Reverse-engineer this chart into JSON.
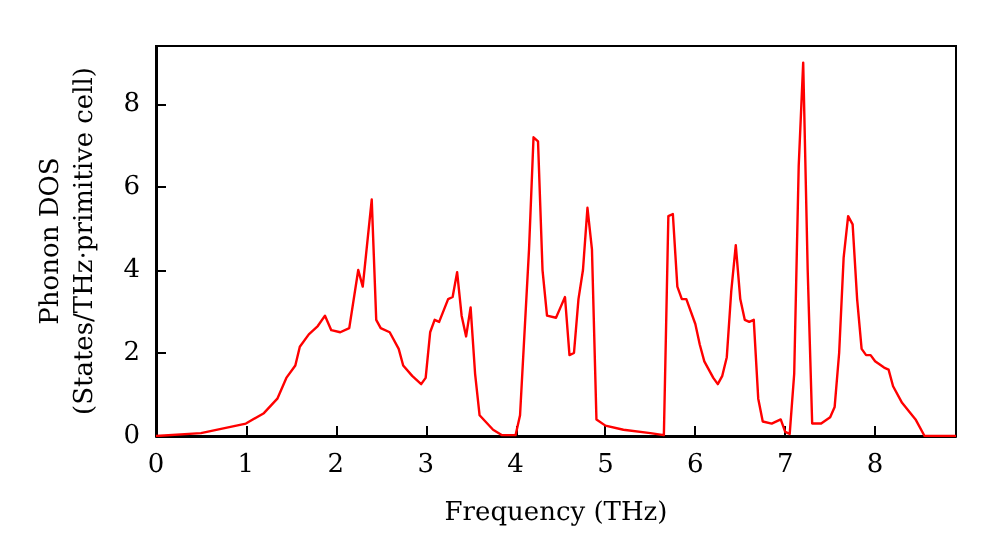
{
  "chart_data": {
    "type": "line",
    "xlabel": "Frequency (THz)",
    "ylabel": "Phonon DOS\n(States/THz·primitive cell)",
    "xlim": [
      0,
      8.9
    ],
    "ylim": [
      0,
      9.4
    ],
    "xticks": [
      0,
      1,
      2,
      3,
      4,
      5,
      6,
      7,
      8
    ],
    "yticks": [
      0,
      2,
      4,
      6,
      8
    ],
    "grid": false,
    "marker": "none",
    "line_style": "solid",
    "series": [
      {
        "color": "#ff0000",
        "x": [
          0,
          0.5,
          1,
          1.2,
          1.35,
          1.45,
          1.55,
          1.6,
          1.7,
          1.8,
          1.88,
          1.95,
          2.05,
          2.15,
          2.25,
          2.3,
          2.4,
          2.45,
          2.5,
          2.6,
          2.7,
          2.75,
          2.85,
          2.95,
          3.0,
          3.05,
          3.1,
          3.15,
          3.25,
          3.3,
          3.35,
          3.4,
          3.45,
          3.5,
          3.55,
          3.6,
          3.75,
          3.85,
          4.0,
          4.05,
          4.15,
          4.2,
          4.25,
          4.3,
          4.35,
          4.45,
          4.5,
          4.55,
          4.6,
          4.65,
          4.7,
          4.75,
          4.8,
          4.85,
          4.9,
          5.0,
          5.2,
          5.5,
          5.65,
          5.7,
          5.75,
          5.8,
          5.85,
          5.9,
          6.0,
          6.05,
          6.1,
          6.2,
          6.25,
          6.3,
          6.35,
          6.4,
          6.45,
          6.5,
          6.55,
          6.6,
          6.65,
          6.7,
          6.75,
          6.85,
          6.95,
          7.0,
          7.05,
          7.1,
          7.15,
          7.2,
          7.25,
          7.3,
          7.4,
          7.5,
          7.55,
          7.6,
          7.65,
          7.7,
          7.75,
          7.8,
          7.85,
          7.9,
          7.95,
          8.0,
          8.1,
          8.15,
          8.2,
          8.3,
          8.45,
          8.55,
          8.9
        ],
        "values": [
          0,
          0.07,
          0.3,
          0.55,
          0.9,
          1.4,
          1.7,
          2.15,
          2.45,
          2.65,
          2.9,
          2.55,
          2.5,
          2.6,
          4.0,
          3.6,
          5.7,
          2.8,
          2.6,
          2.5,
          2.1,
          1.7,
          1.45,
          1.25,
          1.4,
          2.5,
          2.8,
          2.75,
          3.3,
          3.35,
          3.95,
          2.9,
          2.4,
          3.1,
          1.5,
          0.5,
          0.15,
          0.02,
          0.02,
          0.5,
          4.5,
          7.2,
          7.1,
          4.0,
          2.9,
          2.85,
          3.1,
          3.35,
          1.95,
          2.0,
          3.3,
          4.0,
          5.5,
          4.5,
          0.4,
          0.25,
          0.15,
          0.07,
          0.02,
          5.3,
          5.35,
          3.6,
          3.3,
          3.3,
          2.7,
          2.2,
          1.8,
          1.4,
          1.25,
          1.45,
          1.9,
          3.5,
          4.6,
          3.3,
          2.8,
          2.75,
          2.8,
          0.9,
          0.35,
          0.3,
          0.4,
          0.1,
          0.05,
          1.5,
          6.5,
          9.0,
          4.0,
          0.3,
          0.3,
          0.45,
          0.7,
          2.0,
          4.3,
          5.3,
          5.1,
          3.3,
          2.1,
          1.95,
          1.95,
          1.8,
          1.65,
          1.6,
          1.2,
          0.8,
          0.4,
          0.0,
          0.0
        ]
      }
    ]
  }
}
